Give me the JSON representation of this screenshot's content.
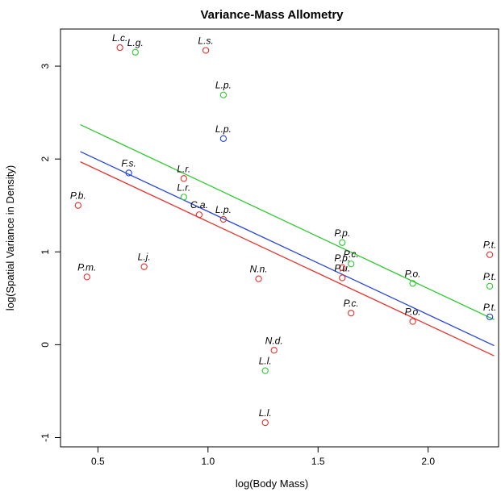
{
  "chart_data": {
    "type": "scatter",
    "title": "Variance-Mass Allometry",
    "xlabel": "log(Body Mass)",
    "ylabel": "log(Spatial Variance in Density)",
    "xlim": [
      0.33,
      2.32
    ],
    "ylim": [
      -1.1,
      3.4
    ],
    "xticks": [
      0.5,
      1.0,
      1.5,
      2.0
    ],
    "xtick_labels": [
      "0.5",
      "1.0",
      "1.5",
      "2.0"
    ],
    "yticks": [
      -1,
      0,
      1,
      2,
      3
    ],
    "ytick_labels": [
      "-1",
      "0",
      "1",
      "2",
      "3"
    ],
    "grid": false,
    "colors": {
      "red": "#e8302a",
      "green": "#2ec92e",
      "blue": "#2244dd"
    },
    "points": [
      {
        "x": 0.6,
        "y": 3.2,
        "label": "L.c.",
        "color": "red"
      },
      {
        "x": 0.67,
        "y": 3.15,
        "label": "L.g.",
        "color": "green"
      },
      {
        "x": 0.99,
        "y": 3.17,
        "label": "L.s.",
        "color": "red"
      },
      {
        "x": 1.07,
        "y": 2.69,
        "label": "L.p.",
        "color": "green"
      },
      {
        "x": 1.07,
        "y": 2.22,
        "label": "L.p.",
        "color": "blue"
      },
      {
        "x": 0.64,
        "y": 1.85,
        "label": "F.s.",
        "color": "blue"
      },
      {
        "x": 0.89,
        "y": 1.79,
        "label": "L.r.",
        "color": "red"
      },
      {
        "x": 0.89,
        "y": 1.59,
        "label": "L.r.",
        "color": "green"
      },
      {
        "x": 0.41,
        "y": 1.5,
        "label": "P.b.",
        "color": "red"
      },
      {
        "x": 0.96,
        "y": 1.4,
        "label": "C.a.",
        "color": "red"
      },
      {
        "x": 1.07,
        "y": 1.35,
        "label": "L.p.",
        "color": "red"
      },
      {
        "x": 0.45,
        "y": 0.73,
        "label": "P.m.",
        "color": "red"
      },
      {
        "x": 0.71,
        "y": 0.84,
        "label": "L.j.",
        "color": "red"
      },
      {
        "x": 1.23,
        "y": 0.71,
        "label": "N.n.",
        "color": "red"
      },
      {
        "x": 1.61,
        "y": 1.1,
        "label": "P.p.",
        "color": "green"
      },
      {
        "x": 1.61,
        "y": 0.83,
        "label": "P.p.",
        "color": "red"
      },
      {
        "x": 1.65,
        "y": 0.87,
        "label": "P.c.",
        "color": "green"
      },
      {
        "x": 1.61,
        "y": 0.72,
        "label": "P.u.",
        "color": "red"
      },
      {
        "x": 1.65,
        "y": 0.34,
        "label": "P.c.",
        "color": "red"
      },
      {
        "x": 1.93,
        "y": 0.66,
        "label": "P.o.",
        "color": "green"
      },
      {
        "x": 1.93,
        "y": 0.25,
        "label": "P.o.",
        "color": "red"
      },
      {
        "x": 2.28,
        "y": 0.97,
        "label": "P.t.",
        "color": "red"
      },
      {
        "x": 2.28,
        "y": 0.63,
        "label": "P.t.",
        "color": "green"
      },
      {
        "x": 2.28,
        "y": 0.3,
        "label": "P.t.",
        "color": "blue"
      },
      {
        "x": 1.3,
        "y": -0.06,
        "label": "N.d.",
        "color": "red"
      },
      {
        "x": 1.26,
        "y": -0.28,
        "label": "L.l.",
        "color": "green"
      },
      {
        "x": 1.26,
        "y": -0.84,
        "label": "L.l.",
        "color": "red"
      }
    ],
    "lines": [
      {
        "color": "green",
        "x": [
          0.42,
          2.3
        ],
        "y": [
          2.37,
          0.27
        ]
      },
      {
        "color": "blue",
        "x": [
          0.42,
          2.3
        ],
        "y": [
          2.08,
          -0.01
        ]
      },
      {
        "color": "red",
        "x": [
          0.42,
          2.3
        ],
        "y": [
          1.97,
          -0.12
        ]
      }
    ]
  }
}
